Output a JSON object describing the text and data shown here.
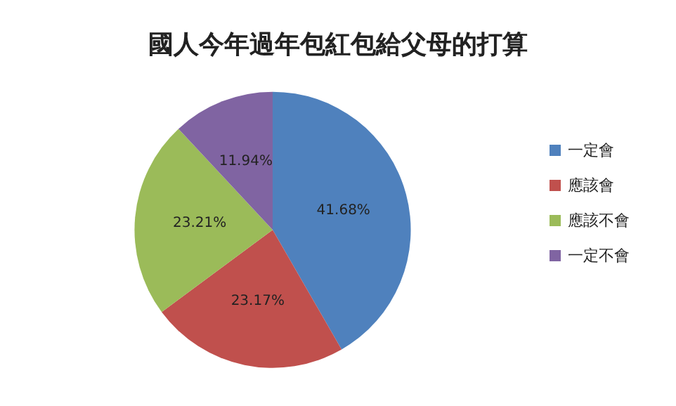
{
  "chart_data": {
    "type": "pie",
    "title": "國人今年過年包紅包給父母的打算",
    "categories": [
      "一定會",
      "應該會",
      "應該不會",
      "一定不會"
    ],
    "values": [
      41.68,
      23.17,
      23.21,
      11.94
    ],
    "colors": [
      "#4f81bd",
      "#c0504d",
      "#9bbb59",
      "#8064a2"
    ],
    "value_labels": [
      "41.68%",
      "23.17%",
      "23.21%",
      "11.94%"
    ],
    "legend": "right"
  }
}
